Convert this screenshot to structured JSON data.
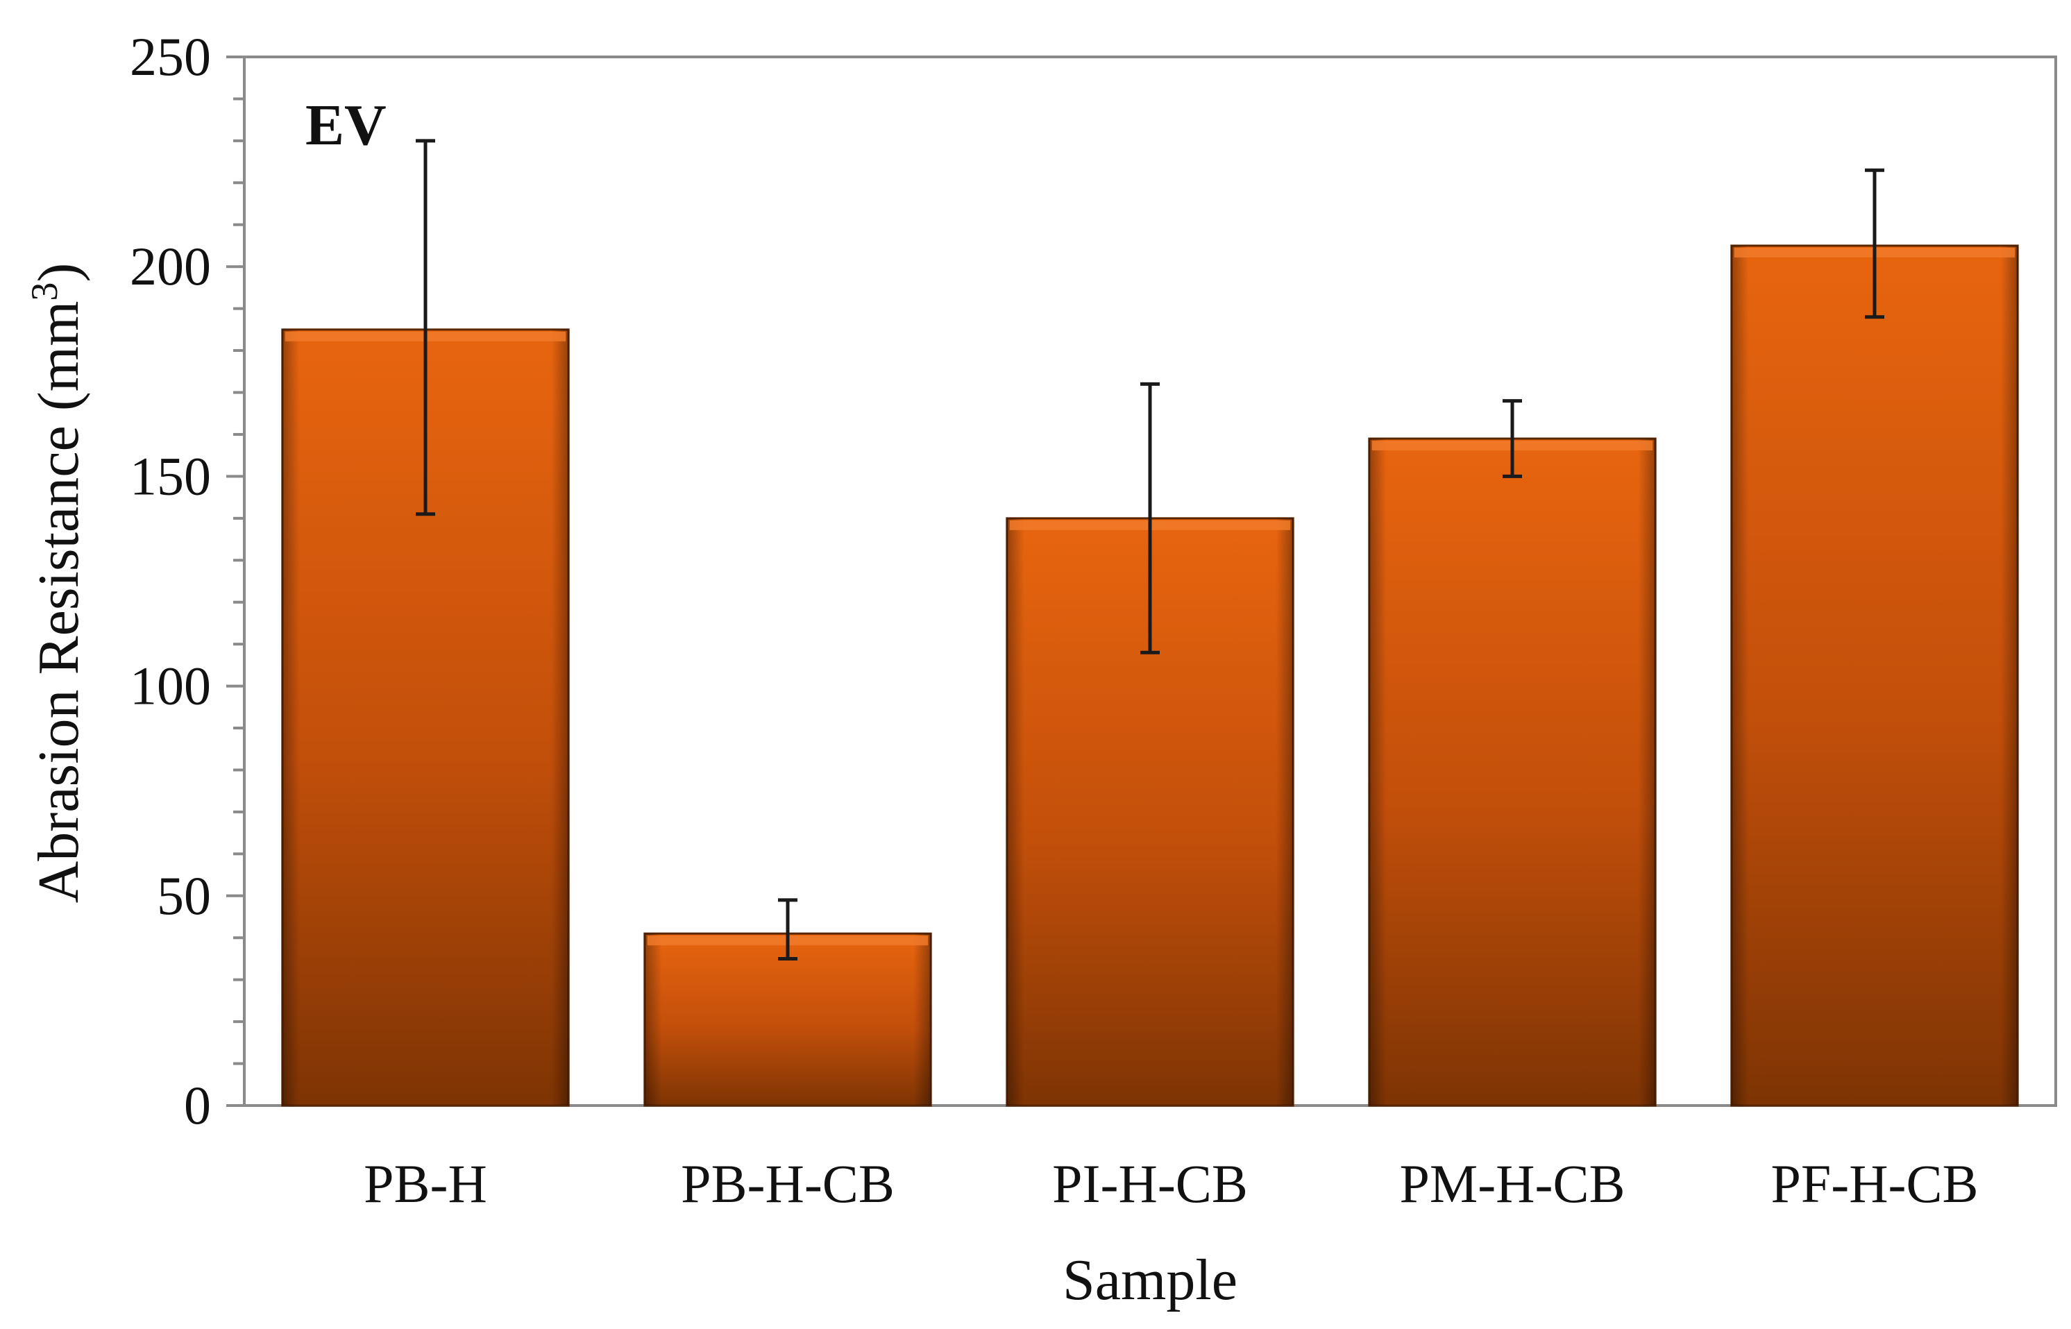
{
  "chart_data": {
    "type": "bar",
    "panel_label": "EV",
    "categories": [
      "PB-H",
      "PB-H-CB",
      "PI-H-CB",
      "PM-H-CB",
      "PF-H-CB"
    ],
    "values": [
      185,
      41,
      140,
      159,
      205
    ],
    "error_low": [
      141,
      35,
      108,
      150,
      188
    ],
    "error_high": [
      230,
      49,
      172,
      168,
      223
    ],
    "xlabel": "Sample",
    "ylabel": {
      "main": "Abrasion Resistance (mm",
      "superscript": "3",
      "close": ")"
    },
    "ylim": [
      0,
      250
    ],
    "yticks": [
      "0",
      "50",
      "100",
      "150",
      "200",
      "250"
    ],
    "minor_ticks_between": 4,
    "grid": false,
    "legend": "none",
    "colors": {
      "bar_light": "#e8650f",
      "bar_mid": "#c24f0a",
      "bar_dark": "#7e3404",
      "axis": "#8a8a8a",
      "error_bar": "#1a1a1a"
    }
  }
}
